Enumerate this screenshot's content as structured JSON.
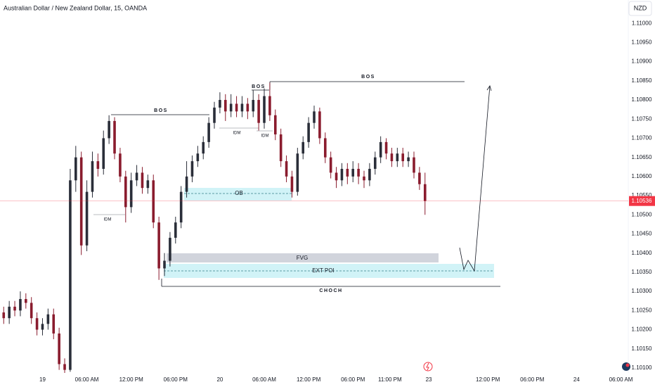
{
  "chart_data": {
    "type": "candlestick",
    "title": "Australian Dollar / New Zealand Dollar, 15, OANDA",
    "currency": "NZD",
    "up_color": "#2a2e39",
    "down_color": "#8a1c2e",
    "x": [
      2,
      5,
      8,
      11,
      14,
      17,
      20,
      23,
      26,
      29,
      32,
      35,
      38,
      41,
      44,
      47,
      50,
      53,
      56,
      59,
      62,
      65,
      68,
      71,
      74,
      77,
      80,
      83,
      86,
      89,
      92,
      95,
      98,
      101,
      104,
      107,
      110,
      113,
      116,
      119,
      122,
      125,
      128,
      131,
      134,
      137,
      140,
      143,
      146,
      149,
      152,
      155,
      158,
      161,
      164,
      167,
      170,
      173,
      176,
      179,
      182,
      185,
      188,
      191,
      194,
      197,
      200,
      203,
      206,
      209,
      212,
      215,
      218,
      221,
      224,
      227,
      230
    ],
    "open": [
      1.10245,
      1.1023,
      1.1026,
      1.1025,
      1.1028,
      1.1027,
      1.1023,
      1.102,
      1.10215,
      1.1024,
      1.1019,
      1.1011,
      1.10095,
      1.1059,
      1.1065,
      1.1042,
      1.1056,
      1.1064,
      1.1062,
      1.107,
      1.10745,
      1.1066,
      1.106,
      1.1052,
      1.1059,
      1.1061,
      1.1057,
      1.1059,
      1.1048,
      1.1036,
      1.1038,
      1.1044,
      1.1048,
      1.1056,
      1.106,
      1.1064,
      1.1066,
      1.1069,
      1.1074,
      1.1078,
      1.108,
      1.1077,
      1.1079,
      1.1077,
      1.1079,
      1.1077,
      1.108,
      1.1074,
      1.1081,
      1.1076,
      1.1071,
      1.1064,
      1.106,
      1.1056,
      1.1066,
      1.1069,
      1.1074,
      1.1077,
      1.107,
      1.1065,
      1.1061,
      1.1059,
      1.1062,
      1.106,
      1.1062,
      1.106,
      1.1059,
      1.1062,
      1.1065,
      1.1069,
      1.1066,
      1.1064,
      1.1066,
      1.1064,
      1.1065,
      1.1061,
      1.1058
    ],
    "high": [
      1.1026,
      1.10275,
      1.10275,
      1.103,
      1.10295,
      1.10285,
      1.10245,
      1.1023,
      1.10255,
      1.10255,
      1.10205,
      1.10125,
      1.1062,
      1.1068,
      1.10665,
      1.1059,
      1.10665,
      1.1066,
      1.1072,
      1.1076,
      1.10755,
      1.10675,
      1.10615,
      1.1061,
      1.1063,
      1.10625,
      1.10605,
      1.10605,
      1.10495,
      1.104,
      1.10455,
      1.10495,
      1.10575,
      1.1064,
      1.10655,
      1.1068,
      1.10705,
      1.10755,
      1.10795,
      1.1082,
      1.10815,
      1.10815,
      1.1081,
      1.1081,
      1.10805,
      1.10825,
      1.10815,
      1.1083,
      1.10845,
      1.10775,
      1.10725,
      1.10655,
      1.10615,
      1.10675,
      1.10705,
      1.10755,
      1.10785,
      1.1078,
      1.10715,
      1.10665,
      1.10625,
      1.10635,
      1.10635,
      1.1064,
      1.10635,
      1.10615,
      1.10635,
      1.10665,
      1.10705,
      1.107,
      1.10675,
      1.10675,
      1.10675,
      1.10665,
      1.10665,
      1.10625,
      1.1061
    ],
    "low": [
      1.10215,
      1.10215,
      1.10235,
      1.10235,
      1.10255,
      1.10215,
      1.10185,
      1.10185,
      1.102,
      1.10175,
      1.10095,
      1.10087,
      1.1009,
      1.1056,
      1.10395,
      1.10405,
      1.10545,
      1.106,
      1.10605,
      1.10685,
      1.10645,
      1.10585,
      1.1048,
      1.10505,
      1.10575,
      1.10555,
      1.10555,
      1.10465,
      1.1033,
      1.1034,
      1.10365,
      1.10425,
      1.10465,
      1.10545,
      1.10585,
      1.10625,
      1.10645,
      1.10675,
      1.10725,
      1.10765,
      1.10745,
      1.10755,
      1.10755,
      1.10755,
      1.1075,
      1.10755,
      1.1072,
      1.10725,
      1.10745,
      1.10695,
      1.10625,
      1.10585,
      1.10545,
      1.1055,
      1.10645,
      1.10675,
      1.10725,
      1.10685,
      1.10635,
      1.10595,
      1.1057,
      1.10575,
      1.1058,
      1.10585,
      1.1058,
      1.1057,
      1.10575,
      1.10605,
      1.10635,
      1.10645,
      1.10625,
      1.10625,
      1.10625,
      1.10625,
      1.10595,
      1.10565,
      1.105
    ],
    "close": [
      1.1023,
      1.1026,
      1.1025,
      1.1028,
      1.1027,
      1.1023,
      1.102,
      1.10215,
      1.1024,
      1.1019,
      1.1011,
      1.10095,
      1.1059,
      1.1065,
      1.1042,
      1.1056,
      1.1064,
      1.1062,
      1.107,
      1.10745,
      1.1066,
      1.106,
      1.1052,
      1.1059,
      1.1061,
      1.1057,
      1.1059,
      1.1048,
      1.1036,
      1.1038,
      1.1044,
      1.1048,
      1.1056,
      1.106,
      1.1064,
      1.1066,
      1.1069,
      1.1074,
      1.1078,
      1.108,
      1.1077,
      1.1079,
      1.1077,
      1.1079,
      1.1077,
      1.108,
      1.1074,
      1.1081,
      1.1076,
      1.1071,
      1.1064,
      1.106,
      1.1056,
      1.1066,
      1.1069,
      1.1074,
      1.1077,
      1.107,
      1.1065,
      1.1061,
      1.1059,
      1.1062,
      1.106,
      1.1062,
      1.106,
      1.1059,
      1.1062,
      1.1065,
      1.1069,
      1.1066,
      1.1064,
      1.1066,
      1.1064,
      1.1065,
      1.1061,
      1.1058,
      1.10536
    ],
    "last_price": 1.10536,
    "xlim": [
      0,
      340
    ],
    "xticks": [
      {
        "value": 23,
        "label": "19"
      },
      {
        "value": 47,
        "label": "06:00 AM"
      },
      {
        "value": 71,
        "label": "12:00 PM"
      },
      {
        "value": 95,
        "label": "06:00 PM"
      },
      {
        "value": 119,
        "label": "20"
      },
      {
        "value": 143,
        "label": "06:00 AM"
      },
      {
        "value": 167,
        "label": "12:00 PM"
      },
      {
        "value": 191,
        "label": "06:00 PM"
      },
      {
        "value": 211,
        "label": "11:00 PM"
      },
      {
        "value": 232,
        "label": "23"
      },
      {
        "value": 264,
        "label": "12:00 PM"
      },
      {
        "value": 288,
        "label": "06:00 PM"
      },
      {
        "value": 312,
        "label": "24"
      },
      {
        "value": 336,
        "label": "06:00 AM"
      }
    ],
    "ylim": [
      1.10087,
      1.11061
    ],
    "yticks": [
      {
        "value": 1.11,
        "label": "1.11000"
      },
      {
        "value": 1.1095,
        "label": "1.10950"
      },
      {
        "value": 1.109,
        "label": "1.10900"
      },
      {
        "value": 1.1085,
        "label": "1.10850"
      },
      {
        "value": 1.108,
        "label": "1.10800"
      },
      {
        "value": 1.1075,
        "label": "1.10750"
      },
      {
        "value": 1.107,
        "label": "1.10700"
      },
      {
        "value": 1.1065,
        "label": "1.10650"
      },
      {
        "value": 1.106,
        "label": "1.10600"
      },
      {
        "value": 1.1055,
        "label": "1.10550"
      },
      {
        "value": 1.105,
        "label": "1.10500"
      },
      {
        "value": 1.1045,
        "label": "1.10450"
      },
      {
        "value": 1.104,
        "label": "1.10400"
      },
      {
        "value": 1.1035,
        "label": "1.10350"
      },
      {
        "value": 1.103,
        "label": "1.10300"
      },
      {
        "value": 1.1025,
        "label": "1.10250"
      },
      {
        "value": 1.102,
        "label": "1.10200"
      },
      {
        "value": 1.1015,
        "label": "1.10150"
      },
      {
        "value": 1.101,
        "label": "1.10100"
      }
    ],
    "grid": false,
    "annotations": [
      "BOS",
      "BOS",
      "BOS",
      "IDM",
      "IDM",
      "IDM",
      "OB",
      "FVG",
      "EXT POI",
      "CHOCH"
    ]
  }
}
